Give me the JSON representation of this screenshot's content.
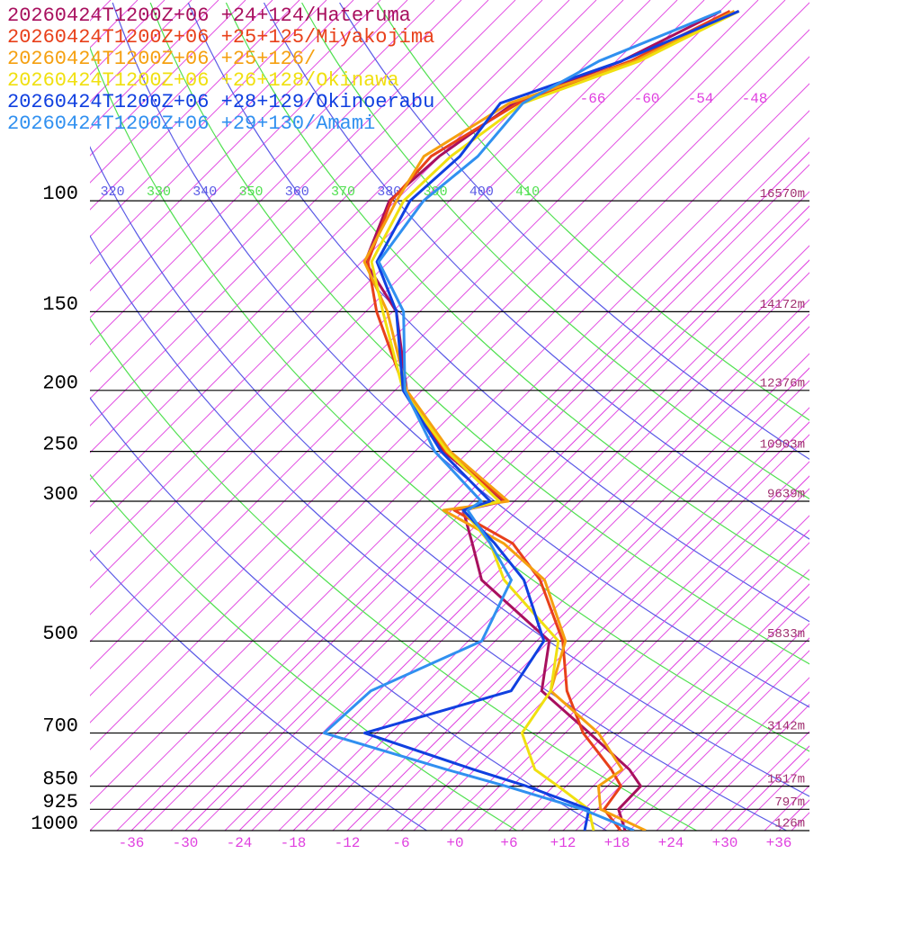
{
  "chart_data": {
    "type": "skewt",
    "pressure": [
      1000,
      925,
      850,
      800,
      700,
      600,
      500,
      400,
      350,
      310,
      300,
      250,
      200,
      150,
      125,
      100,
      85,
      70,
      60,
      50
    ],
    "series": [
      {
        "name": "20260424T1200Z+06 +24+124/Hateruma",
        "color": "#a8105e",
        "values": [
          18.9,
          15.8,
          15.7,
          12.6,
          4.1,
          -5.9,
          -10.6,
          -24.9,
          -30,
          -34.7,
          -31.2,
          -43.4,
          -54.3,
          -64.2,
          -73.2,
          -77.3,
          -76.7,
          -74.3,
          -67,
          -61.5
        ]
      },
      {
        "name": "20260424T1200Z+06 +25+125/Miyakojima",
        "color": "#e8401a",
        "values": [
          18.4,
          14.2,
          13.5,
          10.6,
          3.4,
          -3.1,
          -9.1,
          -18.4,
          -25.5,
          -35.7,
          -31,
          -43.2,
          -54.5,
          -66.4,
          -72.9,
          -77.1,
          -77.6,
          -73.8,
          -66,
          -60.5
        ]
      },
      {
        "name": "20260424T1200Z+06 +25+126/",
        "color": "#f5a010",
        "values": [
          21.2,
          13.8,
          11,
          11.8,
          5.1,
          -4.9,
          -8.8,
          -17.9,
          -26.5,
          -36.9,
          -30.7,
          -42.7,
          -54.3,
          -65.2,
          -73.3,
          -76.5,
          -78.4,
          -74.8,
          -65.5,
          -60
        ]
      },
      {
        "name": "20260424T1200Z+06 +26+128/Okinawa",
        "color": "#f0e010",
        "values": [
          15.4,
          12.5,
          6.5,
          2.1,
          -3.4,
          -4.9,
          -9.6,
          -22.4,
          -28,
          -34.7,
          -31.7,
          -43,
          -54.7,
          -65.7,
          -72.5,
          -75.7,
          -75.4,
          -73.3,
          -65,
          -59.5
        ]
      },
      {
        "name": "20260424T1200Z+06 +28+129/Okinoerabu",
        "color": "#1040e0",
        "values": [
          14.4,
          12.5,
          3,
          -4.7,
          -20.9,
          -9.3,
          -11.2,
          -20.2,
          -27.5,
          -34.7,
          -32.7,
          -43.7,
          -54.7,
          -64.2,
          -71.9,
          -75,
          -74.4,
          -75.8,
          -67,
          -59.5
        ]
      },
      {
        "name": "20260424T1200Z+06 +29+130/Amami",
        "color": "#3090f0",
        "values": [
          19.9,
          11.8,
          0.7,
          -7.7,
          -25.4,
          -24.9,
          -18.1,
          -21.6,
          -28,
          -34.2,
          -33.7,
          -44.4,
          -54.5,
          -63.4,
          -71.7,
          -73.5,
          -72.4,
          -73.3,
          -69.5,
          -61.5
        ]
      }
    ],
    "levels": [
      {
        "pressure": 100,
        "height": {
          "value": 16570,
          "label": "16570m"
        }
      },
      {
        "pressure": 150,
        "height": {
          "value": 14172,
          "label": "14172m"
        }
      },
      {
        "pressure": 200,
        "height": {
          "value": 12376,
          "label": "12376m"
        }
      },
      {
        "pressure": 250,
        "height": {
          "value": 10903,
          "label": "10903m"
        }
      },
      {
        "pressure": 300,
        "height": {
          "value": 9639,
          "label": "9639m"
        }
      },
      {
        "pressure": 500,
        "height": {
          "value": 5833,
          "label": "5833m"
        }
      },
      {
        "pressure": 700,
        "height": {
          "value": 3142,
          "label": "3142m"
        }
      },
      {
        "pressure": 850,
        "height": {
          "value": 1517,
          "label": "1517m"
        }
      },
      {
        "pressure": 925,
        "height": {
          "value": 797,
          "label": "797m"
        }
      },
      {
        "pressure": 1000,
        "height": {
          "value": 126,
          "label": "126m"
        }
      }
    ],
    "xlim": [
      -40.6,
      39.4
    ],
    "ylim": [
      1000,
      48
    ],
    "xticks": [
      -36,
      -30,
      -24,
      -18,
      -12,
      -6,
      {
        "value": 0,
        "label": "+0"
      },
      {
        "value": 6,
        "label": "+6"
      },
      {
        "value": 12,
        "label": "+12"
      },
      {
        "value": 18,
        "label": "+18"
      },
      {
        "value": 24,
        "label": "+24"
      },
      {
        "value": 30,
        "label": "+30"
      },
      {
        "value": 36,
        "label": "+36"
      }
    ],
    "isotherm_labels": [
      -66,
      -60,
      -54,
      -48
    ],
    "isotherm_color": "#e040e0",
    "theta_lines": [
      {
        "value": 270,
        "color": "#5a5ae6"
      },
      {
        "value": 280,
        "color": "#50e050"
      },
      {
        "value": 290,
        "color": "#5a5ae6"
      },
      {
        "value": 300,
        "color": "#50e050"
      },
      {
        "value": 310,
        "color": "#5a5ae6"
      },
      {
        "value": 320,
        "color": "#5a5ae6"
      },
      {
        "value": 330,
        "color": "#50e050"
      },
      {
        "value": 340,
        "color": "#5a5ae6"
      },
      {
        "value": 350,
        "color": "#50e050"
      },
      {
        "value": 360,
        "color": "#5a5ae6"
      },
      {
        "value": 370,
        "color": "#50e050"
      },
      {
        "value": 380,
        "color": "#5a5ae6"
      },
      {
        "value": 390,
        "color": "#50e050"
      },
      {
        "value": 400,
        "color": "#5a5ae6"
      },
      {
        "value": 410,
        "color": "#50e050"
      }
    ],
    "height_color": "#a03070"
  }
}
